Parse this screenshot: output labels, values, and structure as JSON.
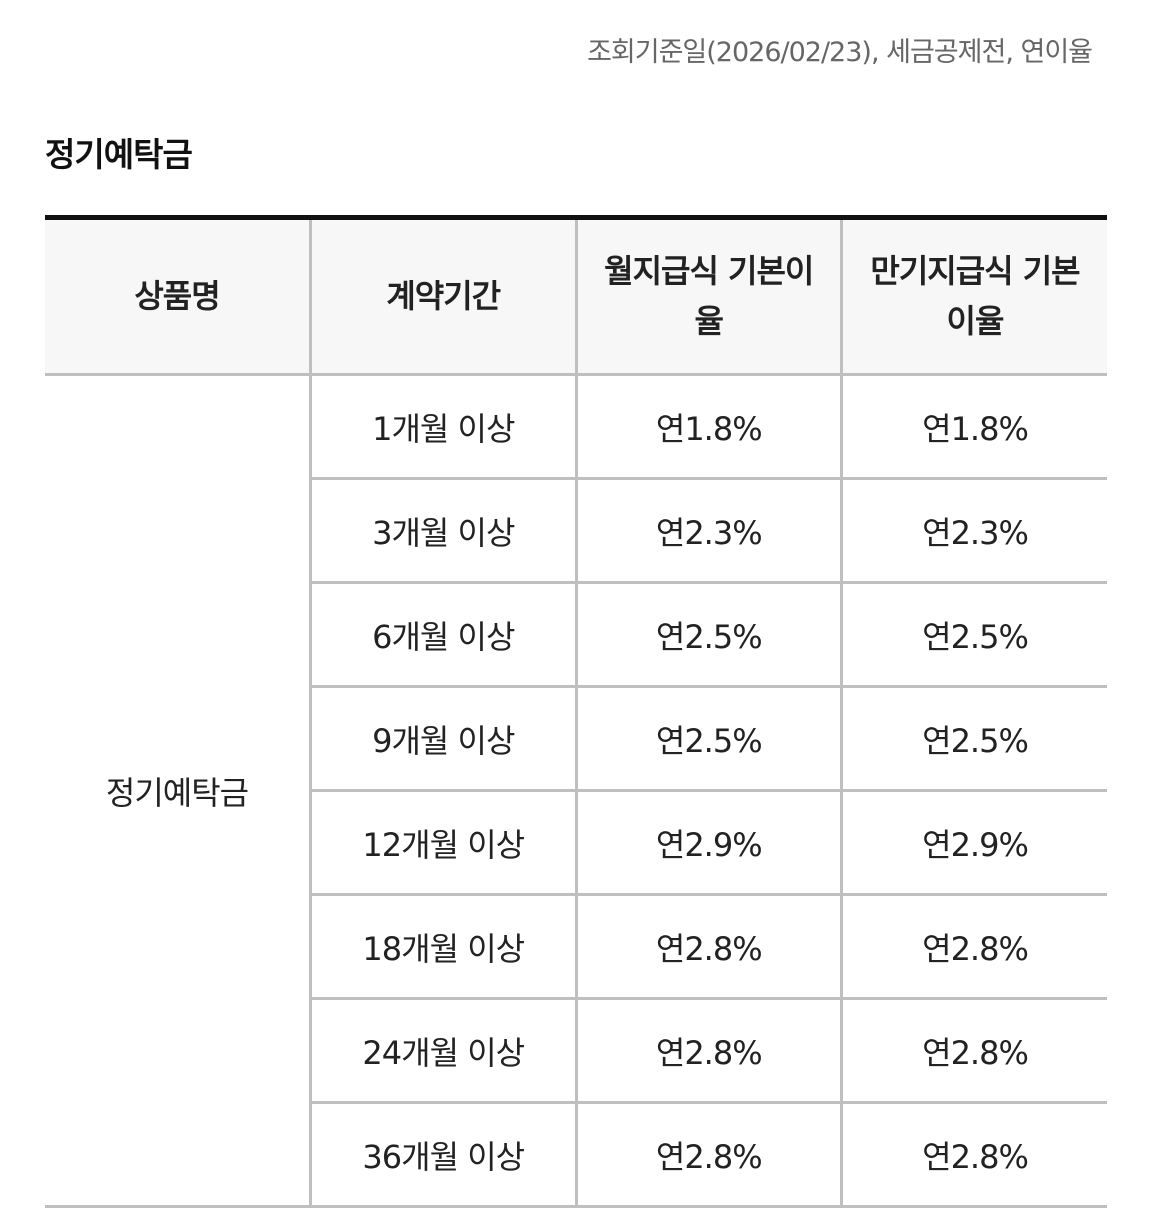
{
  "notice": "조회기준일(2026/02/23), 세금공제전, 연이율",
  "section_title": "정기예탁금",
  "table": {
    "headers": [
      "상품명",
      "계약기간",
      "월지급식 기본이율",
      "만기지급식 기본이율"
    ],
    "product_name": "정기예탁금",
    "rows": [
      {
        "term": "1개월 이상",
        "monthly": "연1.8%",
        "maturity": "연1.8%"
      },
      {
        "term": "3개월 이상",
        "monthly": "연2.3%",
        "maturity": "연2.3%"
      },
      {
        "term": "6개월 이상",
        "monthly": "연2.5%",
        "maturity": "연2.5%"
      },
      {
        "term": "9개월 이상",
        "monthly": "연2.5%",
        "maturity": "연2.5%"
      },
      {
        "term": "12개월 이상",
        "monthly": "연2.9%",
        "maturity": "연2.9%"
      },
      {
        "term": "18개월 이상",
        "monthly": "연2.8%",
        "maturity": "연2.8%"
      },
      {
        "term": "24개월 이상",
        "monthly": "연2.8%",
        "maturity": "연2.8%"
      },
      {
        "term": "36개월 이상",
        "monthly": "연2.8%",
        "maturity": "연2.8%"
      }
    ]
  }
}
